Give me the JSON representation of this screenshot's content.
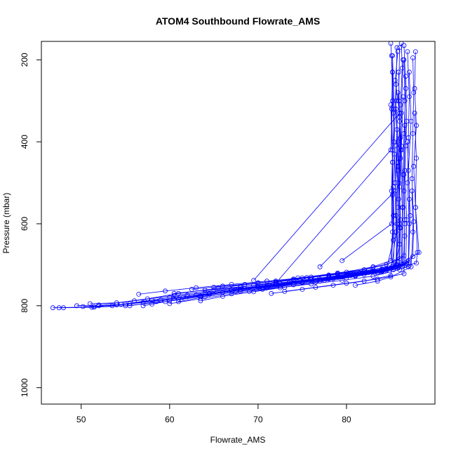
{
  "chart_data": {
    "type": "line",
    "title": "ATOM4 Southbound Flowrate_AMS",
    "xlabel": "Flowrate_AMS",
    "ylabel": "Pressure (mbar)",
    "xlim": [
      45.5,
      90
    ],
    "ylim": [
      1040,
      155
    ],
    "y_reversed": true,
    "xticks": [
      50,
      60,
      70,
      80
    ],
    "yticks": [
      200,
      400,
      600,
      800,
      1000
    ],
    "grid": false,
    "legend": "none",
    "marker": "open-circle",
    "line_color": "#0000ff",
    "series": [
      {
        "x": [
          46.8,
          51.5,
          55.5,
          60.0,
          64.0,
          68.0,
          72.0,
          76.0,
          80.0,
          83.0,
          85.0,
          85.2,
          85.1,
          85.2,
          85.1,
          85.2,
          85.0
        ],
        "y": [
          805,
          803,
          795,
          780,
          768,
          755,
          742,
          730,
          718,
          705,
          690,
          620,
          520,
          420,
          320,
          230,
          160
        ]
      },
      {
        "x": [
          49.5,
          52.0,
          56.0,
          60.5,
          65.0,
          69.5,
          74.0,
          78.0,
          82.0,
          84.5,
          86.0,
          86.1,
          86.0,
          86.2,
          86.1,
          86.3,
          86.2
        ],
        "y": [
          800,
          798,
          788,
          775,
          762,
          750,
          737,
          725,
          712,
          700,
          685,
          610,
          510,
          410,
          310,
          220,
          160
        ]
      },
      {
        "x": [
          51.0,
          54.0,
          57.5,
          61.0,
          65.5,
          70.0,
          74.5,
          79.0,
          83.0,
          85.5,
          86.5,
          86.6,
          86.4,
          86.5,
          86.7,
          86.5
        ],
        "y": [
          795,
          793,
          783,
          770,
          757,
          745,
          732,
          720,
          706,
          693,
          678,
          590,
          480,
          380,
          270,
          165
        ]
      },
      {
        "x": [
          47.5,
          51.2,
          55.0,
          59.5,
          63.5,
          68.0,
          72.5,
          77.0,
          81.0,
          84.0,
          85.6,
          85.7,
          85.5,
          85.8,
          85.6,
          85.7
        ],
        "y": [
          805,
          804,
          800,
          790,
          778,
          765,
          752,
          740,
          728,
          715,
          700,
          600,
          500,
          400,
          300,
          170
        ]
      },
      {
        "x": [
          50.2,
          53.5,
          57.0,
          61.5,
          66.0,
          70.5,
          75.0,
          79.5,
          83.5,
          85.8,
          87.0,
          87.1,
          86.9,
          87.0,
          87.1,
          86.9
        ],
        "y": [
          802,
          800,
          792,
          780,
          767,
          755,
          742,
          730,
          718,
          705,
          690,
          600,
          500,
          390,
          290,
          180
        ]
      },
      {
        "x": [
          48.0,
          51.4,
          54.5,
          58.0,
          62.0,
          66.5,
          71.0,
          75.5,
          80.0,
          84.0,
          86.2,
          86.3,
          86.1,
          86.2,
          86.4
        ],
        "y": [
          805,
          803,
          797,
          786,
          774,
          762,
          750,
          737,
          725,
          712,
          698,
          560,
          440,
          330,
          200
        ]
      },
      {
        "x": [
          54.0,
          57.0,
          60.5,
          64.5,
          68.5,
          72.5,
          76.5,
          80.5,
          84.0,
          86.8,
          87.5,
          87.6,
          87.4,
          87.5,
          87.6,
          87.5
        ],
        "y": [
          798,
          792,
          782,
          770,
          758,
          746,
          734,
          722,
          710,
          697,
          680,
          595,
          490,
          380,
          280,
          195
        ]
      },
      {
        "x": [
          55.5,
          58.5,
          62.0,
          66.0,
          70.0,
          74.0,
          78.0,
          82.0,
          85.0,
          87.9,
          88.0,
          87.8,
          87.6,
          87.9,
          87.7,
          87.8
        ],
        "y": [
          800,
          790,
          778,
          767,
          755,
          744,
          732,
          720,
          708,
          696,
          670,
          560,
          460,
          360,
          270,
          180
        ]
      },
      {
        "x": [
          57.0,
          60.0,
          63.5,
          67.0,
          71.0,
          75.0,
          79.0,
          83.0,
          85.5,
          86.0,
          85.9,
          86.1,
          85.9,
          86.0
        ],
        "y": [
          800,
          788,
          776,
          765,
          753,
          741,
          729,
          717,
          705,
          650,
          540,
          420,
          300,
          170
        ]
      },
      {
        "x": [
          52.0,
          55.0,
          59.0,
          63.0,
          67.5,
          72.0,
          76.5,
          81.0,
          84.5,
          85.3,
          85.2,
          85.4,
          85.3,
          85.2
        ],
        "y": [
          800,
          796,
          786,
          774,
          762,
          750,
          738,
          726,
          712,
          640,
          530,
          430,
          330,
          230
        ]
      },
      {
        "x": [
          58.0,
          61.0,
          64.5,
          68.0,
          72.0,
          76.0,
          80.0,
          84.0,
          86.4,
          86.6,
          86.5,
          86.7,
          86.6,
          86.5
        ],
        "y": [
          796,
          784,
          772,
          760,
          749,
          737,
          726,
          714,
          700,
          630,
          520,
          410,
          300,
          200
        ]
      },
      {
        "x": [
          63.5,
          66.0,
          69.5,
          73.0,
          76.5,
          80.0,
          83.5,
          85.9,
          86.0,
          85.8,
          86.0,
          85.9
        ],
        "y": [
          788,
          777,
          766,
          755,
          743,
          732,
          720,
          707,
          600,
          470,
          350,
          230
        ]
      },
      {
        "x": [
          61.0,
          64.0,
          67.5,
          71.0,
          75.0,
          79.0,
          82.5,
          85.1,
          85.3,
          85.2,
          85.4,
          85.2
        ],
        "y": [
          790,
          778,
          766,
          755,
          743,
          731,
          719,
          705,
          580,
          450,
          320,
          190
        ]
      },
      {
        "x": [
          56.5,
          59.5,
          63.0,
          67.0,
          71.0,
          75.0,
          79.0,
          83.0,
          86.7,
          86.8,
          86.6,
          86.8,
          86.7
        ],
        "y": [
          772,
          764,
          756,
          748,
          740,
          732,
          724,
          715,
          700,
          590,
          470,
          350,
          240
        ]
      },
      {
        "x": [
          60.5,
          64.0,
          68.0,
          72.0,
          76.0,
          80.0,
          84.0,
          87.0,
          87.2,
          87.0,
          87.3,
          87.1
        ],
        "y": [
          770,
          762,
          754,
          745,
          736,
          727,
          718,
          705,
          580,
          470,
          350,
          230
        ]
      },
      {
        "x": [
          62.5,
          66.0,
          70.0,
          74.0,
          78.0,
          82.0,
          85.5,
          86.0,
          85.9,
          86.1,
          85.8
        ],
        "y": [
          760,
          752,
          744,
          735,
          726,
          716,
          706,
          610,
          500,
          390,
          280
        ]
      },
      {
        "x": [
          65.0,
          68.5,
          72.0,
          75.5,
          79.0,
          82.5,
          85.7,
          85.6,
          85.8,
          85.6
        ],
        "y": [
          755,
          748,
          740,
          731,
          722,
          713,
          702,
          580,
          450,
          320
        ]
      },
      {
        "x": [
          67.0,
          70.0,
          73.5,
          77.0,
          80.5,
          84.0,
          86.3,
          86.4,
          86.2,
          86.4
        ],
        "y": [
          760,
          752,
          744,
          735,
          726,
          716,
          705,
          560,
          420,
          290
        ]
      },
      {
        "x": [
          69.0,
          72.5,
          76.0,
          79.5,
          83.0,
          86.0,
          86.1,
          85.9,
          86.0
        ],
        "y": [
          765,
          756,
          747,
          738,
          728,
          712,
          590,
          460,
          340
        ]
      },
      {
        "x": [
          71.5,
          75.0,
          78.5,
          82.0,
          85.0,
          85.6,
          85.5,
          85.7
        ],
        "y": [
          770,
          760,
          750,
          740,
          726,
          620,
          500,
          370
        ]
      },
      {
        "x": [
          73.0,
          76.5,
          80.0,
          83.5,
          86.5,
          86.6,
          86.5,
          86.6
        ],
        "y": [
          765,
          755,
          745,
          735,
          722,
          600,
          480,
          360
        ]
      },
      {
        "x": [
          69.5,
          86.0,
          85.5,
          85.8
        ],
        "y": [
          738,
          330,
          250,
          180
        ]
      },
      {
        "x": [
          72.0,
          85.0,
          85.2,
          85.1
        ],
        "y": [
          745,
          420,
          300,
          190
        ]
      },
      {
        "x": [
          77.0,
          85.5,
          85.4,
          85.6
        ],
        "y": [
          705,
          520,
          400,
          260
        ]
      },
      {
        "x": [
          79.5,
          85.1,
          85.2,
          85.0
        ],
        "y": [
          690,
          600,
          450,
          310
        ]
      },
      {
        "x": [
          81.0,
          83.5,
          85.0,
          87.3,
          87.5,
          87.4
        ],
        "y": [
          750,
          740,
          730,
          705,
          620,
          520
        ]
      },
      {
        "x": [
          64.5,
          68.0,
          71.5,
          75.0,
          78.5,
          82.0,
          85.3,
          85.4,
          85.3
        ],
        "y": [
          770,
          761,
          752,
          743,
          734,
          724,
          712,
          630,
          510
        ]
      },
      {
        "x": [
          78.0,
          81.5,
          85.5,
          88.2,
          87.8,
          87.9,
          87.7
        ],
        "y": [
          735,
          720,
          705,
          670,
          560,
          440,
          330
        ]
      },
      {
        "x": [
          74.5,
          78.0,
          81.5,
          84.5,
          87.0,
          87.1,
          86.9
        ],
        "y": [
          742,
          731,
          720,
          708,
          695,
          540,
          400
        ]
      },
      {
        "x": [
          60.0,
          63.5,
          67.0,
          70.5,
          74.0,
          77.5,
          81.0,
          84.5,
          85.7,
          85.8,
          85.6
        ],
        "y": [
          795,
          783,
          771,
          760,
          749,
          738,
          726,
          714,
          700,
          560,
          410
        ]
      }
    ]
  }
}
